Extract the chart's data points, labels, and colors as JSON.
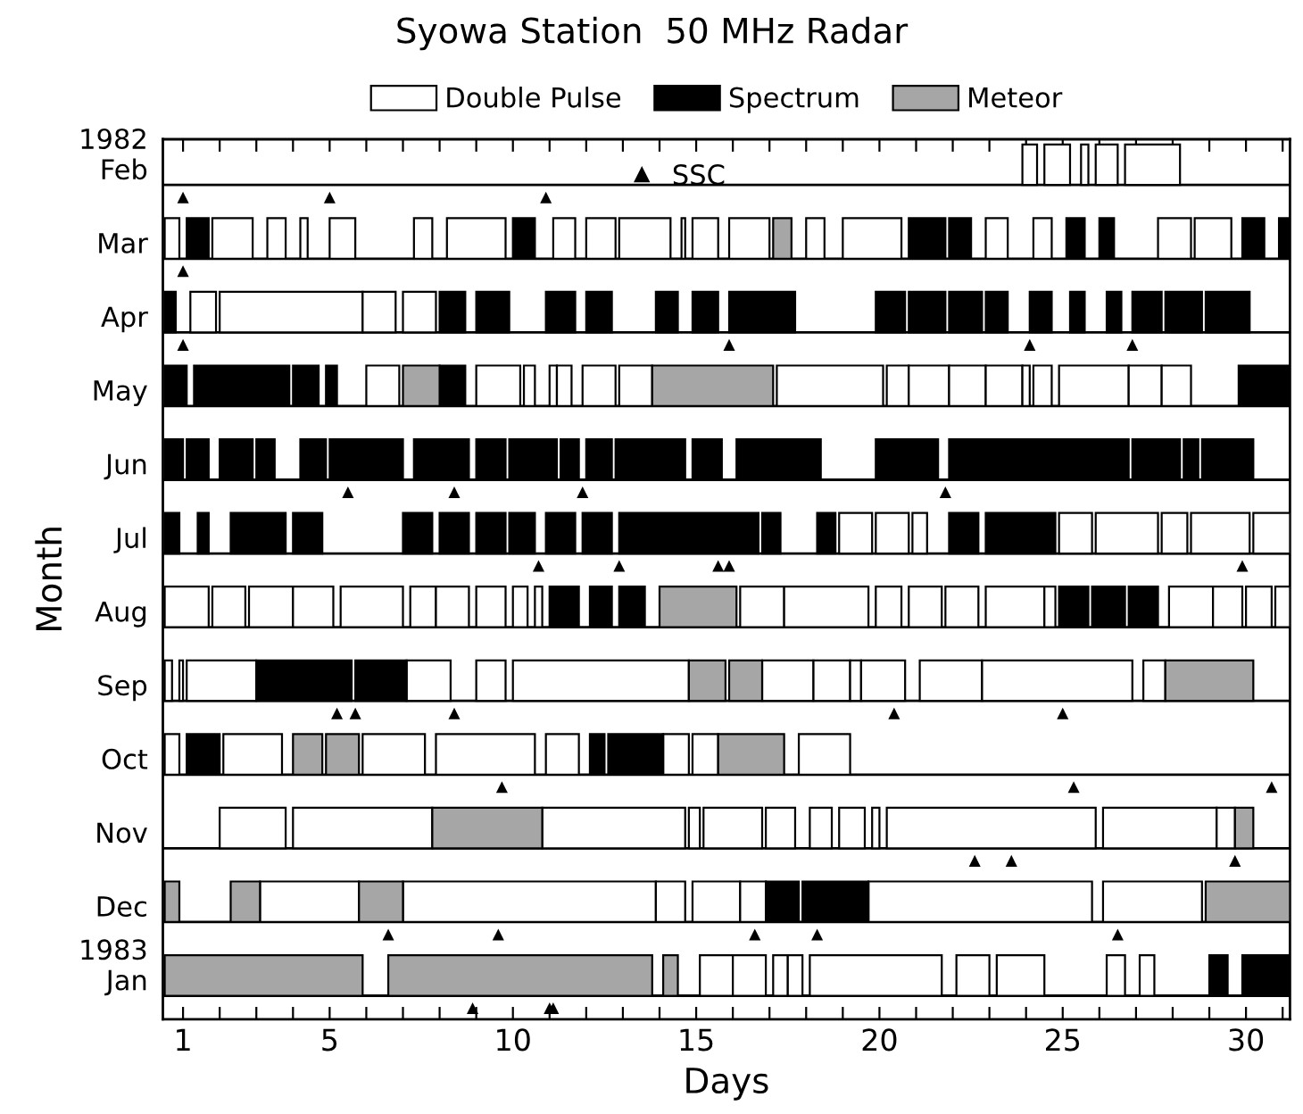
{
  "chart_data": {
    "type": "bar",
    "orientation": "horizontal",
    "title": "Syowa Station  50 MHz Radar",
    "xlabel": "Days",
    "ylabel": "Month",
    "legend": "top",
    "grid": "y",
    "categories": [
      "1982\nFeb",
      "Mar",
      "Apr",
      "May",
      "Jun",
      "Jul",
      "Aug",
      "Sep",
      "Oct",
      "Nov",
      "Dec",
      "1983\nJan"
    ],
    "xlim": [
      0.45,
      31.2
    ],
    "xticks": [
      1,
      {
        "value": 2,
        "label": null
      },
      {
        "value": 3,
        "label": null
      },
      {
        "value": 4,
        "label": null
      },
      5,
      {
        "value": 6,
        "label": null
      },
      {
        "value": 7,
        "label": null
      },
      {
        "value": 8,
        "label": null
      },
      {
        "value": 9,
        "label": null
      },
      10,
      {
        "value": 11,
        "label": null
      },
      {
        "value": 12,
        "label": null
      },
      {
        "value": 13,
        "label": null
      },
      {
        "value": 14,
        "label": null
      },
      15,
      {
        "value": 16,
        "label": null
      },
      {
        "value": 17,
        "label": null
      },
      {
        "value": 18,
        "label": null
      },
      {
        "value": 19,
        "label": null
      },
      20,
      {
        "value": 21,
        "label": null
      },
      {
        "value": 22,
        "label": null
      },
      {
        "value": 23,
        "label": null
      },
      {
        "value": 24,
        "label": null
      },
      25,
      {
        "value": 26,
        "label": null
      },
      {
        "value": 27,
        "label": null
      },
      {
        "value": 28,
        "label": null
      },
      {
        "value": 29,
        "label": null
      },
      30,
      {
        "value": 31,
        "label": null
      }
    ],
    "series": [
      {
        "name": "Double Pulse",
        "color": "#ffffff",
        "base": [
          23.9,
          0.5,
          1.2,
          6.0,
          null,
          18.9,
          0.5,
          0.5,
          0.5,
          2.0,
          3.1,
          15.1
        ],
        "values": [
          0.4,
          0.4,
          0.7,
          0.9,
          null,
          0.9,
          1.2,
          0.2,
          0.4,
          1.8,
          2.7,
          0.9
        ]
      },
      {
        "color": "#ffffff",
        "base": [
          24.5,
          1.8,
          2.0,
          9.0,
          null,
          19.9,
          1.8,
          0.9,
          2.1,
          4.0,
          7.0,
          16.0
        ],
        "values": [
          0.7,
          1.1,
          3.9,
          1.2,
          null,
          0.9,
          0.9,
          0.1,
          1.6,
          3.8,
          6.9,
          0.9
        ]
      },
      {
        "color": "#ffffff",
        "base": [
          25.5,
          3.3,
          5.9,
          10.3,
          null,
          20.9,
          2.8,
          1.1,
          5.9,
          10.8,
          13.9,
          17.1
        ],
        "values": [
          0.2,
          0.5,
          0.9,
          0.3,
          null,
          0.4,
          1.2,
          1.9,
          1.7,
          3.9,
          0.8,
          0.4
        ]
      },
      {
        "color": "#ffffff",
        "base": [
          25.9,
          4.2,
          7.0,
          11.0,
          null,
          24.9,
          4.0,
          7.1,
          7.9,
          14.8,
          14.9,
          17.5
        ],
        "values": [
          0.6,
          0.2,
          0.9,
          0.2,
          null,
          0.9,
          1.1,
          1.2,
          2.7,
          0.3,
          1.3,
          0.4
        ]
      },
      {
        "color": "#ffffff",
        "base": [
          26.7,
          5.0,
          null,
          11.2,
          null,
          25.9,
          5.3,
          9.0,
          10.9,
          15.2,
          16.2,
          18.1
        ],
        "values": [
          1.5,
          0.7,
          null,
          0.4,
          null,
          1.7,
          1.7,
          0.8,
          0.9,
          1.6,
          0.7,
          3.6
        ]
      },
      {
        "color": "#ffffff",
        "base": [
          null,
          7.3,
          null,
          11.9,
          null,
          27.7,
          7.2,
          10.0,
          14.1,
          16.9,
          19.7,
          22.1
        ],
        "values": [
          null,
          0.5,
          null,
          0.9,
          null,
          0.7,
          0.7,
          4.8,
          0.7,
          0.8,
          6.1,
          0.9
        ]
      },
      {
        "color": "#ffffff",
        "base": [
          null,
          8.2,
          null,
          12.9,
          null,
          28.5,
          7.9,
          16.8,
          14.9,
          18.1,
          26.1,
          23.2
        ],
        "values": [
          null,
          1.6,
          null,
          0.9,
          null,
          1.6,
          0.9,
          1.4,
          0.7,
          0.6,
          2.7,
          1.3
        ]
      },
      {
        "color": "#ffffff",
        "base": [
          null,
          11.1,
          null,
          17.2,
          null,
          30.2,
          9.0,
          18.2,
          17.8,
          18.9,
          null,
          26.2
        ],
        "values": [
          null,
          0.6,
          null,
          2.9,
          null,
          1.0,
          0.8,
          1.0,
          1.4,
          0.7,
          null,
          0.5
        ]
      },
      {
        "color": "#ffffff",
        "base": [
          null,
          12.0,
          null,
          20.2,
          null,
          null,
          10.0,
          19.2,
          null,
          19.8,
          null,
          27.1
        ],
        "values": [
          null,
          0.8,
          null,
          0.6,
          null,
          null,
          0.4,
          0.3,
          null,
          0.2,
          null,
          0.4
        ]
      },
      {
        "color": "#ffffff",
        "base": [
          null,
          12.9,
          null,
          20.8,
          null,
          null,
          10.6,
          19.5,
          null,
          20.2,
          null,
          null
        ],
        "values": [
          null,
          1.4,
          null,
          1.1,
          null,
          null,
          0.2,
          1.2,
          null,
          5.7,
          null,
          null
        ]
      },
      {
        "color": "#ffffff",
        "base": [
          null,
          14.6,
          null,
          21.9,
          null,
          null,
          16.2,
          21.1,
          null,
          26.1,
          null,
          null
        ],
        "values": [
          null,
          0.1,
          null,
          1.0,
          null,
          null,
          1.2,
          1.7,
          null,
          3.1,
          null,
          null
        ]
      },
      {
        "color": "#ffffff",
        "base": [
          null,
          14.9,
          null,
          22.9,
          null,
          null,
          17.4,
          22.8,
          null,
          29.2,
          null,
          null
        ],
        "values": [
          null,
          0.7,
          null,
          1.0,
          null,
          null,
          2.3,
          4.1,
          null,
          0.5,
          null,
          null
        ]
      },
      {
        "color": "#ffffff",
        "base": [
          null,
          15.9,
          null,
          23.9,
          null,
          null,
          19.9,
          27.2,
          null,
          null,
          null,
          null
        ],
        "values": [
          null,
          1.1,
          null,
          0.2,
          null,
          null,
          0.7,
          0.6,
          null,
          null,
          null,
          null
        ]
      },
      {
        "color": "#ffffff",
        "base": [
          null,
          18.0,
          null,
          24.2,
          null,
          null,
          20.8,
          null,
          null,
          null,
          null,
          null
        ],
        "values": [
          null,
          0.5,
          null,
          0.5,
          null,
          null,
          0.9,
          null,
          null,
          null,
          null,
          null
        ]
      },
      {
        "color": "#ffffff",
        "base": [
          null,
          19.0,
          null,
          24.9,
          null,
          null,
          21.8,
          null,
          null,
          null,
          null,
          null
        ],
        "values": [
          null,
          1.6,
          null,
          1.9,
          null,
          null,
          0.9,
          null,
          null,
          null,
          null,
          null
        ]
      },
      {
        "color": "#ffffff",
        "base": [
          null,
          22.9,
          null,
          26.8,
          null,
          null,
          22.9,
          null,
          null,
          null,
          null,
          null
        ],
        "values": [
          null,
          0.6,
          null,
          0.9,
          null,
          null,
          1.6,
          null,
          null,
          null,
          null,
          null
        ]
      },
      {
        "color": "#ffffff",
        "base": [
          null,
          24.2,
          null,
          27.7,
          null,
          null,
          24.5,
          null,
          null,
          null,
          null,
          null
        ],
        "values": [
          null,
          0.5,
          null,
          0.8,
          null,
          null,
          0.3,
          null,
          null,
          null,
          null,
          null
        ]
      },
      {
        "color": "#ffffff",
        "base": [
          null,
          27.6,
          null,
          null,
          null,
          null,
          27.9,
          null,
          null,
          null,
          null,
          null
        ],
        "values": [
          null,
          0.9,
          null,
          null,
          null,
          null,
          1.2,
          null,
          null,
          null,
          null,
          null
        ]
      },
      {
        "color": "#ffffff",
        "base": [
          null,
          28.6,
          null,
          null,
          null,
          null,
          29.1,
          null,
          null,
          null,
          null,
          null
        ],
        "values": [
          null,
          1.0,
          null,
          null,
          null,
          null,
          0.8,
          null,
          null,
          null,
          null,
          null
        ]
      },
      {
        "color": "#ffffff",
        "base": [
          null,
          null,
          null,
          null,
          null,
          null,
          30.0,
          null,
          null,
          null,
          null,
          null
        ],
        "values": [
          null,
          null,
          null,
          null,
          null,
          null,
          0.7,
          null,
          null,
          null,
          null,
          null
        ]
      },
      {
        "color": "#ffffff",
        "base": [
          null,
          null,
          null,
          null,
          null,
          null,
          30.8,
          null,
          null,
          null,
          null,
          null
        ],
        "values": [
          null,
          null,
          null,
          null,
          null,
          null,
          0.4,
          null,
          null,
          null,
          null,
          null
        ]
      },
      {
        "name": "Spectrum",
        "color": "#000000",
        "base": [
          null,
          1.1,
          0.5,
          0.5,
          0.5,
          0.5,
          11.0,
          3.0,
          1.1,
          null,
          16.9,
          29.0
        ],
        "values": [
          null,
          0.6,
          0.3,
          0.6,
          0.5,
          0.4,
          0.8,
          2.6,
          0.9,
          null,
          0.9,
          0.5
        ]
      },
      {
        "color": "#000000",
        "base": [
          null,
          10.0,
          8.0,
          1.3,
          1.1,
          1.4,
          12.1,
          5.7,
          12.1,
          null,
          17.9,
          29.9
        ],
        "values": [
          null,
          0.6,
          0.7,
          2.6,
          0.6,
          0.3,
          0.6,
          1.4,
          0.4,
          null,
          1.8,
          1.3
        ]
      },
      {
        "color": "#000000",
        "base": [
          null,
          20.8,
          9.0,
          4.0,
          2.0,
          2.3,
          12.9,
          null,
          12.6,
          null,
          null,
          null
        ],
        "values": [
          null,
          1.0,
          0.9,
          0.7,
          0.9,
          1.5,
          0.7,
          null,
          1.5,
          null,
          null,
          null
        ]
      },
      {
        "color": "#000000",
        "base": [
          null,
          21.9,
          10.9,
          4.9,
          3.0,
          4.0,
          24.9,
          null,
          null,
          null,
          null,
          null
        ],
        "values": [
          null,
          0.6,
          0.8,
          0.3,
          0.5,
          0.8,
          0.8,
          null,
          null,
          null,
          null,
          null
        ]
      },
      {
        "color": "#000000",
        "base": [
          null,
          25.1,
          12.0,
          8.0,
          4.2,
          7.0,
          25.8,
          null,
          null,
          null,
          null,
          null
        ],
        "values": [
          null,
          0.5,
          0.7,
          0.7,
          0.7,
          0.8,
          0.9,
          null,
          null,
          null,
          null,
          null
        ]
      },
      {
        "color": "#000000",
        "base": [
          null,
          26.0,
          13.9,
          29.8,
          5.0,
          8.0,
          26.8,
          null,
          null,
          null,
          null,
          null
        ],
        "values": [
          null,
          0.4,
          0.6,
          1.4,
          2.0,
          0.8,
          0.8,
          null,
          null,
          null,
          null,
          null
        ]
      },
      {
        "color": "#000000",
        "base": [
          null,
          29.9,
          14.9,
          null,
          7.3,
          9.0,
          null,
          null,
          null,
          null,
          null,
          null
        ],
        "values": [
          null,
          0.6,
          0.7,
          null,
          1.5,
          0.8,
          null,
          null,
          null,
          null,
          null,
          null
        ]
      },
      {
        "color": "#000000",
        "base": [
          null,
          30.9,
          15.9,
          null,
          9.0,
          9.9,
          null,
          null,
          null,
          null,
          null,
          null
        ],
        "values": [
          null,
          0.3,
          1.8,
          null,
          0.8,
          0.7,
          null,
          null,
          null,
          null,
          null,
          null
        ]
      },
      {
        "color": "#000000",
        "base": [
          null,
          null,
          19.9,
          null,
          9.9,
          10.9,
          null,
          null,
          null,
          null,
          null,
          null
        ],
        "values": [
          null,
          null,
          0.8,
          null,
          1.3,
          0.8,
          null,
          null,
          null,
          null,
          null,
          null
        ]
      },
      {
        "color": "#000000",
        "base": [
          null,
          null,
          20.8,
          null,
          11.3,
          11.9,
          null,
          null,
          null,
          null,
          null,
          null
        ],
        "values": [
          null,
          null,
          1.0,
          null,
          0.5,
          0.8,
          null,
          null,
          null,
          null,
          null,
          null
        ]
      },
      {
        "color": "#000000",
        "base": [
          null,
          null,
          21.9,
          null,
          12.0,
          12.9,
          null,
          null,
          null,
          null,
          null,
          null
        ],
        "values": [
          null,
          null,
          0.9,
          null,
          0.7,
          3.8,
          null,
          null,
          null,
          null,
          null,
          null
        ]
      },
      {
        "color": "#000000",
        "base": [
          null,
          null,
          22.9,
          null,
          12.8,
          16.8,
          null,
          null,
          null,
          null,
          null,
          null
        ],
        "values": [
          null,
          null,
          0.6,
          null,
          1.9,
          0.5,
          null,
          null,
          null,
          null,
          null,
          null
        ]
      },
      {
        "color": "#000000",
        "base": [
          null,
          null,
          24.1,
          null,
          14.9,
          18.3,
          null,
          null,
          null,
          null,
          null,
          null
        ],
        "values": [
          null,
          null,
          0.6,
          null,
          0.8,
          0.5,
          null,
          null,
          null,
          null,
          null,
          null
        ]
      },
      {
        "color": "#000000",
        "base": [
          null,
          null,
          25.2,
          null,
          16.1,
          21.9,
          null,
          null,
          null,
          null,
          null,
          null
        ],
        "values": [
          null,
          null,
          0.4,
          null,
          2.3,
          0.8,
          null,
          null,
          null,
          null,
          null,
          null
        ]
      },
      {
        "color": "#000000",
        "base": [
          null,
          null,
          26.2,
          null,
          19.9,
          22.9,
          null,
          null,
          null,
          null,
          null,
          null
        ],
        "values": [
          null,
          null,
          0.4,
          null,
          1.7,
          1.9,
          null,
          null,
          null,
          null,
          null,
          null
        ]
      },
      {
        "color": "#000000",
        "base": [
          null,
          null,
          26.9,
          null,
          21.9,
          null,
          null,
          null,
          null,
          null,
          null,
          null
        ],
        "values": [
          null,
          null,
          0.8,
          null,
          4.9,
          null,
          null,
          null,
          null,
          null,
          null,
          null
        ]
      },
      {
        "color": "#000000",
        "base": [
          null,
          null,
          27.8,
          null,
          26.9,
          null,
          null,
          null,
          null,
          null,
          null,
          null
        ],
        "values": [
          null,
          null,
          1.0,
          null,
          1.3,
          null,
          null,
          null,
          null,
          null,
          null,
          null
        ]
      },
      {
        "color": "#000000",
        "base": [
          null,
          null,
          28.9,
          null,
          28.3,
          null,
          null,
          null,
          null,
          null,
          null,
          null
        ],
        "values": [
          null,
          null,
          1.2,
          null,
          0.4,
          null,
          null,
          null,
          null,
          null,
          null,
          null
        ]
      },
      {
        "color": "#000000",
        "base": [
          null,
          null,
          null,
          null,
          28.8,
          null,
          null,
          null,
          null,
          null,
          null,
          null
        ],
        "values": [
          null,
          null,
          null,
          null,
          1.4,
          null,
          null,
          null,
          null,
          null,
          null,
          null
        ]
      },
      {
        "name": "Meteor",
        "color": "#a6a6a6",
        "base": [
          null,
          17.1,
          null,
          7.0,
          null,
          null,
          14.0,
          14.8,
          4.0,
          7.8,
          0.5,
          0.5
        ],
        "values": [
          null,
          0.5,
          null,
          1.0,
          null,
          null,
          2.1,
          1.0,
          0.8,
          3.0,
          0.4,
          5.4
        ]
      },
      {
        "color": "#a6a6a6",
        "base": [
          null,
          null,
          null,
          13.8,
          null,
          null,
          null,
          15.9,
          4.9,
          29.7,
          2.3,
          6.6
        ],
        "values": [
          null,
          null,
          null,
          3.3,
          null,
          null,
          null,
          0.9,
          0.9,
          0.5,
          0.8,
          7.2
        ]
      },
      {
        "color": "#a6a6a6",
        "base": [
          null,
          null,
          null,
          null,
          null,
          null,
          null,
          27.8,
          15.6,
          null,
          5.8,
          14.1
        ],
        "values": [
          null,
          null,
          null,
          null,
          null,
          null,
          null,
          2.4,
          1.8,
          null,
          1.2,
          0.4
        ]
      },
      {
        "color": "#a6a6a6",
        "base": [
          null,
          null,
          null,
          null,
          null,
          null,
          null,
          null,
          null,
          null,
          28.9,
          null
        ],
        "values": [
          null,
          null,
          null,
          null,
          null,
          null,
          null,
          null,
          null,
          null,
          2.3,
          null
        ]
      },
      {
        "type": "scatter",
        "name": "SSC",
        "marker": "triangle",
        "color": "#000000",
        "values": [
          1.0,
          1.0,
          1.0,
          null,
          5.5,
          10.7,
          null,
          5.2,
          9.7,
          22.6,
          6.6,
          8.9
        ]
      },
      {
        "type": "scatter",
        "marker": "triangle",
        "color": "#000000",
        "values": [
          5.0,
          null,
          15.9,
          null,
          8.4,
          12.9,
          null,
          5.7,
          25.3,
          23.6,
          9.6,
          11.0
        ]
      },
      {
        "type": "scatter",
        "marker": "triangle",
        "color": "#000000",
        "values": [
          10.9,
          null,
          24.1,
          null,
          11.9,
          15.6,
          null,
          8.4,
          30.7,
          29.7,
          16.6,
          11.1
        ]
      },
      {
        "type": "scatter",
        "marker": "triangle",
        "color": "#000000",
        "values": [
          null,
          null,
          26.9,
          null,
          21.8,
          15.9,
          null,
          20.4,
          null,
          null,
          18.3,
          null
        ]
      },
      {
        "type": "scatter",
        "marker": "triangle",
        "color": "#000000",
        "values": [
          null,
          null,
          null,
          null,
          null,
          29.9,
          null,
          25.0,
          null,
          null,
          26.5,
          null
        ]
      }
    ]
  }
}
